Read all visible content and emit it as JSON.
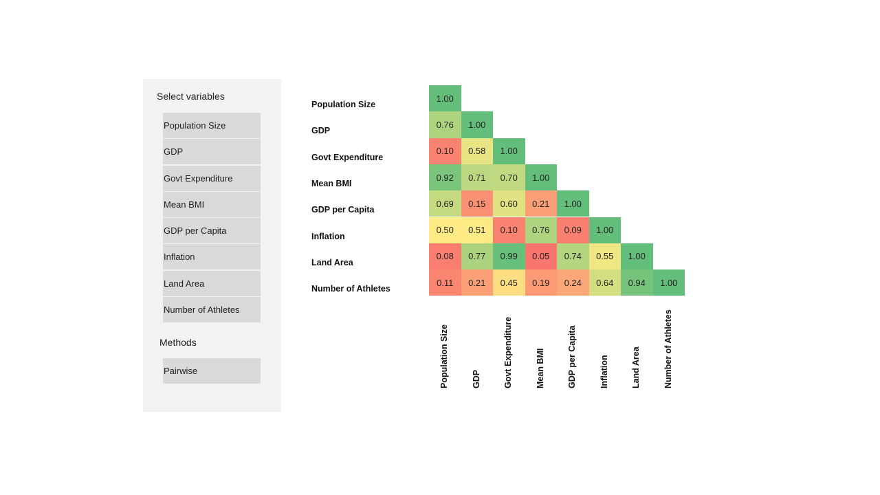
{
  "sidebar": {
    "select_heading": "Select variables",
    "variables": [
      "Population Size",
      "GDP",
      "Govt Expenditure",
      "Mean BMI",
      "GDP per Capita",
      "Inflation",
      "Land Area",
      "Number of Athletes"
    ],
    "methods_heading": "Methods",
    "methods": [
      "Pairwise"
    ]
  },
  "chart_data": {
    "type": "heatmap",
    "rows": [
      "Population Size",
      "GDP",
      "Govt Expenditure",
      "Mean BMI",
      "GDP per Capita",
      "Inflation",
      "Land Area",
      "Number of Athletes"
    ],
    "columns": [
      "Population Size",
      "GDP",
      "Govt Expenditure",
      "Mean BMI",
      "GDP per Capita",
      "Inflation",
      "Land Area",
      "Number of Athletes"
    ],
    "values": [
      [
        1.0
      ],
      [
        0.76,
        1.0
      ],
      [
        0.1,
        0.58,
        1.0
      ],
      [
        0.92,
        0.71,
        0.7,
        1.0
      ],
      [
        0.69,
        0.15,
        0.6,
        0.21,
        1.0
      ],
      [
        0.5,
        0.51,
        0.1,
        0.76,
        0.09,
        1.0
      ],
      [
        0.08,
        0.77,
        0.99,
        0.05,
        0.74,
        0.55,
        1.0
      ],
      [
        0.11,
        0.21,
        0.45,
        0.19,
        0.24,
        0.64,
        0.94,
        1.0
      ]
    ],
    "color_scale": {
      "low": "#f8696b",
      "mid": "#ffeb84",
      "high": "#63be7b"
    }
  }
}
